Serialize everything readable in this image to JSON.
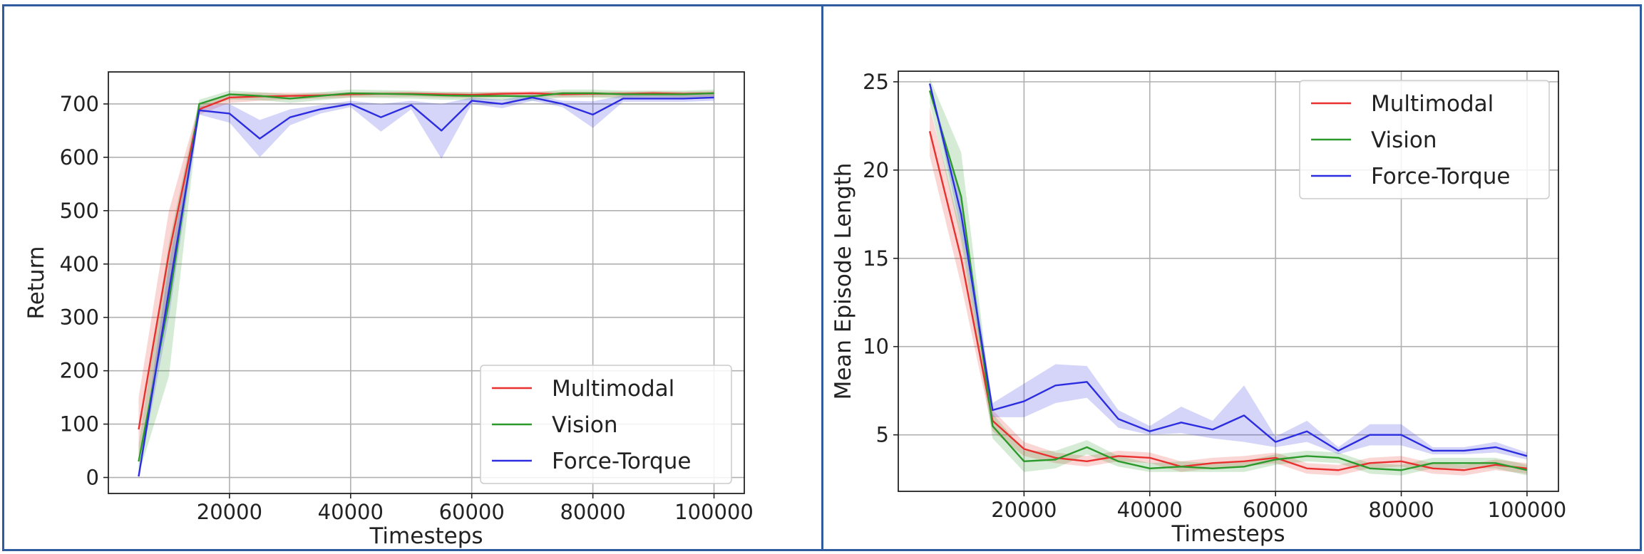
{
  "chart_data": [
    {
      "type": "line",
      "title": "",
      "xlabel": "Timesteps",
      "ylabel": "Return",
      "xlim": [
        0,
        105000
      ],
      "ylim": [
        -30,
        760
      ],
      "xticks": [
        20000,
        40000,
        60000,
        80000,
        100000
      ],
      "xtick_labels": [
        "20000",
        "40000",
        "60000",
        "80000",
        "100000"
      ],
      "yticks": [
        0,
        100,
        200,
        300,
        400,
        500,
        600,
        700
      ],
      "ytick_labels": [
        "0",
        "100",
        "200",
        "300",
        "400",
        "500",
        "600",
        "700"
      ],
      "grid": true,
      "legend_position": "lower-right",
      "x": [
        5000,
        10000,
        15000,
        20000,
        25000,
        30000,
        35000,
        40000,
        45000,
        50000,
        55000,
        60000,
        65000,
        70000,
        75000,
        80000,
        85000,
        90000,
        95000,
        100000
      ],
      "series": [
        {
          "name": "Multimodal",
          "color": "#e8302e",
          "values": [
            90,
            420,
            690,
            712,
            714,
            715,
            716,
            718,
            719,
            719,
            718,
            717,
            719,
            720,
            718,
            719,
            719,
            720,
            719,
            720
          ],
          "lower": [
            40,
            340,
            680,
            702,
            706,
            708,
            710,
            712,
            713,
            713,
            712,
            711,
            713,
            714,
            712,
            713,
            713,
            714,
            713,
            714
          ],
          "upper": [
            150,
            500,
            700,
            720,
            721,
            721,
            721,
            722,
            723,
            723,
            722,
            722,
            723,
            724,
            723,
            723,
            723,
            724,
            723,
            724
          ]
        },
        {
          "name": "Vision",
          "color": "#2b9a2b",
          "values": [
            30,
            330,
            700,
            718,
            715,
            710,
            715,
            720,
            719,
            718,
            716,
            715,
            715,
            714,
            720,
            720,
            718,
            718,
            718,
            720
          ],
          "lower": [
            5,
            190,
            690,
            708,
            707,
            702,
            707,
            712,
            711,
            710,
            708,
            707,
            707,
            706,
            712,
            712,
            710,
            710,
            710,
            712
          ],
          "upper": [
            60,
            440,
            708,
            725,
            722,
            718,
            722,
            727,
            726,
            725,
            723,
            722,
            722,
            721,
            727,
            727,
            725,
            725,
            725,
            727
          ]
        },
        {
          "name": "Force-Torque",
          "color": "#2c2ce0",
          "values": [
            2,
            350,
            688,
            682,
            635,
            675,
            690,
            700,
            675,
            698,
            650,
            706,
            700,
            712,
            700,
            680,
            710,
            710,
            710,
            712
          ],
          "lower": [
            0,
            300,
            680,
            665,
            600,
            660,
            682,
            694,
            648,
            690,
            597,
            700,
            692,
            706,
            694,
            655,
            704,
            704,
            704,
            706
          ],
          "upper": [
            10,
            400,
            696,
            700,
            670,
            690,
            698,
            706,
            700,
            706,
            700,
            712,
            708,
            718,
            706,
            705,
            716,
            716,
            716,
            718
          ]
        }
      ]
    },
    {
      "type": "line",
      "title": "",
      "xlabel": "Timesteps",
      "ylabel": "Mean Episode Length",
      "xlim": [
        0,
        105000
      ],
      "ylim": [
        1.8,
        25.6
      ],
      "xticks": [
        20000,
        40000,
        60000,
        80000,
        100000
      ],
      "xtick_labels": [
        "20000",
        "40000",
        "60000",
        "80000",
        "100000"
      ],
      "yticks": [
        5,
        10,
        15,
        20,
        25
      ],
      "ytick_labels": [
        "5",
        "10",
        "15",
        "20",
        "25"
      ],
      "grid": true,
      "legend_position": "top-right",
      "x": [
        5000,
        10000,
        15000,
        20000,
        25000,
        30000,
        35000,
        40000,
        45000,
        50000,
        55000,
        60000,
        65000,
        70000,
        75000,
        80000,
        85000,
        90000,
        95000,
        100000
      ],
      "series": [
        {
          "name": "Multimodal",
          "color": "#e8302e",
          "values": [
            22.2,
            15.0,
            5.8,
            4.2,
            3.7,
            3.5,
            3.8,
            3.7,
            3.2,
            3.4,
            3.5,
            3.7,
            3.1,
            3.0,
            3.4,
            3.5,
            3.1,
            3.0,
            3.3,
            3.1
          ],
          "lower": [
            20.8,
            13.5,
            5.2,
            3.8,
            3.4,
            3.2,
            3.5,
            3.4,
            2.9,
            3.1,
            3.2,
            3.4,
            2.8,
            2.7,
            3.1,
            3.2,
            2.8,
            2.7,
            3.0,
            2.8
          ],
          "upper": [
            23.6,
            16.5,
            6.4,
            4.6,
            4.0,
            3.8,
            4.1,
            4.0,
            3.5,
            3.7,
            3.8,
            4.0,
            3.4,
            3.3,
            3.7,
            3.8,
            3.4,
            3.3,
            3.6,
            3.4
          ]
        },
        {
          "name": "Vision",
          "color": "#2b9a2b",
          "values": [
            24.5,
            18.5,
            5.5,
            3.5,
            3.6,
            4.3,
            3.5,
            3.1,
            3.2,
            3.1,
            3.2,
            3.6,
            3.8,
            3.7,
            3.1,
            3.0,
            3.4,
            3.4,
            3.4,
            3.0
          ],
          "lower": [
            23.8,
            16.0,
            4.8,
            2.9,
            3.1,
            3.9,
            3.2,
            2.9,
            2.9,
            2.9,
            2.9,
            3.3,
            3.5,
            3.4,
            2.8,
            2.7,
            3.1,
            3.1,
            3.1,
            2.7
          ],
          "upper": [
            25.2,
            21.0,
            6.2,
            4.1,
            4.1,
            4.7,
            3.8,
            3.4,
            3.5,
            3.4,
            3.5,
            3.9,
            4.1,
            4.0,
            3.4,
            3.3,
            3.7,
            3.7,
            3.7,
            3.3
          ],
          "_note": ""
        },
        {
          "name": "Force-Torque",
          "color": "#2c2ce0",
          "values": [
            24.9,
            17.5,
            6.4,
            6.9,
            7.8,
            8.0,
            5.9,
            5.2,
            5.7,
            5.3,
            6.1,
            4.6,
            5.2,
            4.1,
            5.0,
            5.0,
            4.1,
            4.1,
            4.3,
            3.8
          ],
          "lower": [
            24.9,
            16.5,
            6.0,
            6.0,
            6.8,
            7.1,
            5.4,
            5.0,
            5.1,
            4.8,
            4.6,
            4.3,
            4.6,
            3.9,
            4.4,
            4.4,
            3.9,
            3.9,
            4.0,
            3.6
          ],
          "upper": [
            24.9,
            18.5,
            6.8,
            7.9,
            9.0,
            8.9,
            6.4,
            5.5,
            6.6,
            5.8,
            7.8,
            4.9,
            5.8,
            4.3,
            5.6,
            5.6,
            4.3,
            4.3,
            4.6,
            4.0
          ]
        }
      ]
    }
  ]
}
